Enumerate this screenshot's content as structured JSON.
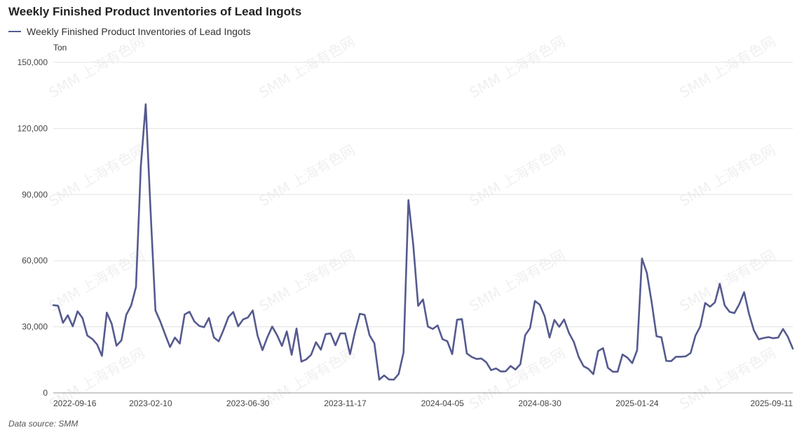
{
  "watermark_text": "SMM 上海有色网",
  "footer": {
    "source": "Data source:  SMM"
  },
  "chart_data": {
    "type": "line",
    "title": "Weekly Finished Product Inventories of Lead Ingots",
    "ylabel": "Ton",
    "ylim": [
      0,
      150000
    ],
    "yticks": [
      "0",
      "30,000",
      "60,000",
      "90,000",
      "120,000",
      "150,000"
    ],
    "ytick_values": [
      0,
      30000,
      60000,
      90000,
      120000,
      150000
    ],
    "xticks": [
      "2022-09-16",
      "2023-02-10",
      "2023-06-30",
      "2023-11-17",
      "2024-04-05",
      "2024-08-30",
      "2025-01-24",
      "2025-09-11"
    ],
    "grid": true,
    "legend_position": "top-left",
    "series": [
      {
        "name": "Weekly Finished Product Inventories of Lead Ingots",
        "color": "#555a8f",
        "values": [
          39800,
          39500,
          31800,
          35200,
          30200,
          37000,
          34000,
          26000,
          24500,
          22000,
          16800,
          36400,
          31400,
          21400,
          23800,
          35400,
          39600,
          48000,
          103000,
          131000,
          82500,
          37400,
          32400,
          26500,
          20800,
          25100,
          22400,
          35600,
          36800,
          32400,
          30400,
          29800,
          34000,
          25200,
          23400,
          28600,
          34400,
          36700,
          30200,
          33300,
          34200,
          37400,
          25900,
          19400,
          25200,
          30100,
          26200,
          21300,
          27900,
          17300,
          29200,
          14200,
          15200,
          17300,
          23000,
          19600,
          26700,
          27000,
          21600,
          27000,
          27000,
          17600,
          27500,
          35900,
          35400,
          26200,
          22500,
          6000,
          7900,
          6100,
          6000,
          8600,
          18400,
          87500,
          67000,
          39500,
          42400,
          30100,
          29000,
          30600,
          24400,
          23400,
          17600,
          33200,
          33500,
          17900,
          16300,
          15400,
          15600,
          13900,
          10300,
          11100,
          9700,
          9800,
          12200,
          10600,
          13000,
          26200,
          29400,
          41700,
          40000,
          34800,
          25100,
          33100,
          30000,
          33300,
          27200,
          23100,
          16300,
          12100,
          10900,
          8500,
          19000,
          20300,
          11400,
          9600,
          9600,
          17400,
          16000,
          13500,
          19300,
          61000,
          54500,
          41100,
          25700,
          25200,
          14500,
          14400,
          16400,
          16400,
          16600,
          18100,
          26000,
          30200,
          40800,
          39100,
          41100,
          49500,
          39700,
          36800,
          36200,
          40200,
          45700,
          35900,
          28400,
          24300,
          24900,
          25300,
          24800,
          25100,
          29000,
          25400,
          20100
        ]
      }
    ]
  }
}
